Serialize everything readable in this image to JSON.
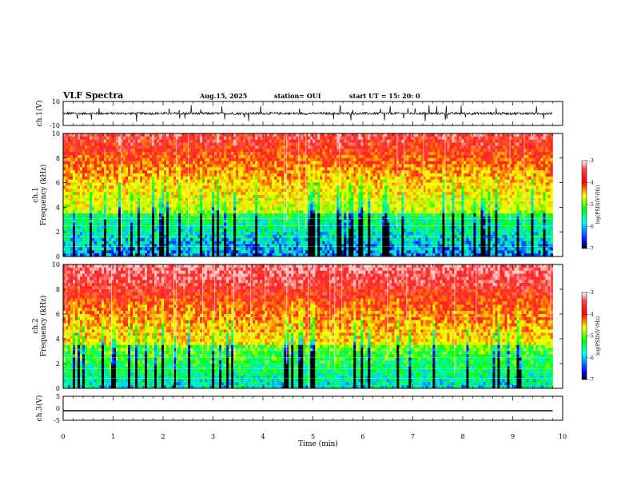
{
  "header": {
    "title": "VLF Spectra",
    "date": "Aug.15, 2025",
    "station": "station= OUI",
    "start": "start  UT  =   15: 20: 0"
  },
  "chart_data": [
    {
      "type": "line",
      "name": "ch1-waveform",
      "ylabel": "ch.1(V)",
      "ylim": [
        -10,
        10
      ],
      "yticks": [
        "10",
        "-10"
      ],
      "xlim": [
        0,
        10
      ],
      "baseline": 0,
      "noise_amplitude": 2,
      "line_end_min": 9.8
    },
    {
      "type": "heatmap",
      "name": "ch1-spectrogram",
      "ylabel_line1": "ch.1",
      "ylabel_line2": "Frequency (kHz)",
      "ylim": [
        0,
        10
      ],
      "yticks": [
        "0",
        "2",
        "4",
        "6",
        "8",
        "10"
      ],
      "xlim": [
        0,
        10
      ],
      "data_end_min": 9.8
    },
    {
      "type": "heatmap",
      "name": "ch2-spectrogram",
      "ylabel_line1": "ch.2",
      "ylabel_line2": "Frequency (kHz)",
      "ylim": [
        0,
        10
      ],
      "yticks": [
        "0",
        "2",
        "4",
        "6",
        "8",
        "10"
      ],
      "xlim": [
        0,
        10
      ],
      "data_end_min": 9.8
    },
    {
      "type": "line",
      "name": "ch3-waveform",
      "ylabel": "ch.3(V)",
      "ylim": [
        -5,
        5
      ],
      "yticks": [
        "5",
        "0",
        "-5"
      ],
      "xlim": [
        0,
        10
      ],
      "baseline": -1,
      "line_end_min": 9.8,
      "xlabel": "Time (min)",
      "xticks": [
        "0",
        "1",
        "2",
        "3",
        "4",
        "5",
        "6",
        "7",
        "8",
        "9",
        "10"
      ]
    }
  ],
  "colorbar": {
    "label": "log(PSD)(V²/Hz)",
    "ticks": [
      "-3",
      "-4",
      "-5",
      "-6",
      "-7"
    ],
    "range": [
      -7,
      -3
    ],
    "colors": [
      "#000000",
      "#0000ff",
      "#00ffff",
      "#00ff00",
      "#ffff00",
      "#ff0000",
      "#ffffff"
    ]
  }
}
